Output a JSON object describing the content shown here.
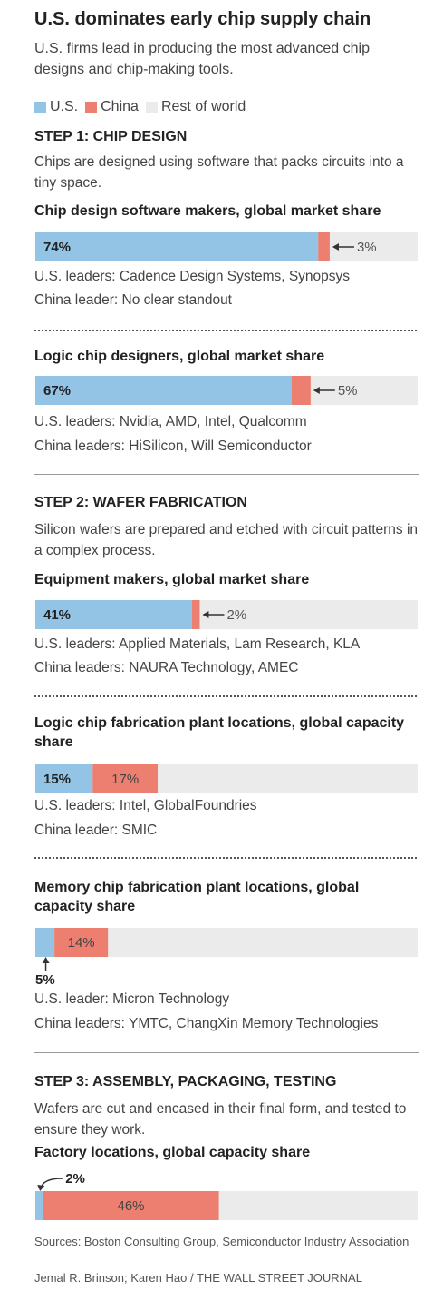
{
  "title": "U.S. dominates early chip supply chain",
  "subtitle": "U.S. firms lead in producing the most advanced chip designs and chip-making tools.",
  "legend": [
    {
      "label": "U.S.",
      "color": "#93c4e6"
    },
    {
      "label": "China",
      "color": "#ec7f6f"
    },
    {
      "label": "Rest of world",
      "color": "#ebebeb"
    }
  ],
  "colors": {
    "us": "#93c4e6",
    "china": "#ec7f6f",
    "rest": "#ebebeb"
  },
  "steps": [
    {
      "heading": "STEP 1: CHIP DESIGN",
      "description": "Chips are designed using software that packs circuits into a tiny space."
    },
    {
      "heading": "STEP 2: WAFER FABRICATION",
      "description": "Silicon wafers are prepared and etched with circuit patterns in a complex process."
    },
    {
      "heading": "STEP 3: ASSEMBLY, PACKAGING, TESTING",
      "description": "Wafers are cut and encased in their final form, and tested to ensure they work."
    }
  ],
  "chart_data": [
    {
      "type": "bar",
      "title": "Chip design software makers, global market share",
      "series": [
        {
          "name": "U.S.",
          "values": [
            74
          ]
        },
        {
          "name": "China",
          "values": [
            3
          ]
        },
        {
          "name": "Rest of world",
          "values": [
            23
          ]
        }
      ],
      "us_label": "74%",
      "china_label": "3%",
      "notes": [
        "U.S. leaders: Cadence Design Systems, Synopsys",
        "China leader: No clear standout"
      ]
    },
    {
      "type": "bar",
      "title": "Logic chip designers, global market share",
      "series": [
        {
          "name": "U.S.",
          "values": [
            67
          ]
        },
        {
          "name": "China",
          "values": [
            5
          ]
        },
        {
          "name": "Rest of world",
          "values": [
            28
          ]
        }
      ],
      "us_label": "67%",
      "china_label": "5%",
      "notes": [
        "U.S. leaders: Nvidia, AMD, Intel, Qualcomm",
        "China leaders: HiSilicon, Will Semiconductor"
      ]
    },
    {
      "type": "bar",
      "title": "Equipment makers, global market share",
      "series": [
        {
          "name": "U.S.",
          "values": [
            41
          ]
        },
        {
          "name": "China",
          "values": [
            2
          ]
        },
        {
          "name": "Rest of world",
          "values": [
            57
          ]
        }
      ],
      "us_label": "41%",
      "china_label": "2%",
      "notes": [
        "U.S. leaders: Applied Materials, Lam Research, KLA",
        "China leaders: NAURA Technology, AMEC"
      ]
    },
    {
      "type": "bar",
      "title": "Logic chip fabrication plant locations, global capacity share",
      "series": [
        {
          "name": "U.S.",
          "values": [
            15
          ]
        },
        {
          "name": "China",
          "values": [
            17
          ]
        },
        {
          "name": "Rest of world",
          "values": [
            68
          ]
        }
      ],
      "us_label": "15%",
      "china_label": "17%",
      "notes": [
        "U.S. leaders: Intel, GlobalFoundries",
        "China leader: SMIC"
      ]
    },
    {
      "type": "bar",
      "title": "Memory chip fabrication plant locations, global capacity share",
      "series": [
        {
          "name": "U.S.",
          "values": [
            5
          ]
        },
        {
          "name": "China",
          "values": [
            14
          ]
        },
        {
          "name": "Rest of world",
          "values": [
            81
          ]
        }
      ],
      "us_label": "5%",
      "china_label": "14%",
      "notes": [
        "U.S. leader: Micron Technology",
        "China leaders: YMTC, ChangXin Memory Technologies"
      ]
    },
    {
      "type": "bar",
      "title": "Factory locations, global capacity share",
      "series": [
        {
          "name": "U.S.",
          "values": [
            2
          ]
        },
        {
          "name": "China",
          "values": [
            46
          ]
        },
        {
          "name": "Rest of world",
          "values": [
            52
          ]
        }
      ],
      "us_label": "2%",
      "china_label": "46%",
      "notes": []
    }
  ],
  "sources": "Sources: Boston Consulting Group, Semiconductor Industry Association",
  "credit": "Jemal R. Brinson; Karen Hao / THE WALL STREET JOURNAL"
}
